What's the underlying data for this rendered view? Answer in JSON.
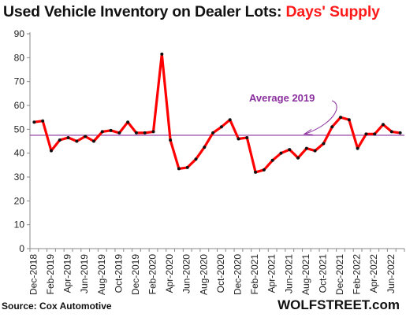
{
  "chart_data": {
    "type": "line",
    "title": "Used Vehicle Inventory on Dealer Lots: ",
    "title_highlight": "Days' Supply",
    "title_highlight_color": "#ff1a1a",
    "source": "Source: Cox Automotive",
    "brand": "WOLFSTREET.com",
    "ylim": [
      0,
      90
    ],
    "yticks": [
      0,
      10,
      20,
      30,
      40,
      50,
      60,
      70,
      80,
      90
    ],
    "grid": false,
    "x": [
      "Dec-2018",
      "Jan-2019",
      "Feb-2019",
      "Mar-2019",
      "Apr-2019",
      "May-2019",
      "Jun-2019",
      "Jul-2019",
      "Aug-2019",
      "Sep-2019",
      "Oct-2019",
      "Nov-2019",
      "Dec-2019",
      "Jan-2020",
      "Feb-2020",
      "Mar-2020",
      "Apr-2020",
      "May-2020",
      "Jun-2020",
      "Jul-2020",
      "Aug-2020",
      "Sep-2020",
      "Oct-2020",
      "Nov-2020",
      "Dec-2020",
      "Jan-2021",
      "Feb-2021",
      "Mar-2021",
      "Apr-2021",
      "May-2021",
      "Jun-2021",
      "Jul-2021",
      "Aug-2021",
      "Sep-2021",
      "Oct-2021",
      "Nov-2021",
      "Dec-2021",
      "Jan-2022",
      "Feb-2022",
      "Mar-2022",
      "Apr-2022",
      "May-2022",
      "Jun-2022",
      "Jul-2022"
    ],
    "xtick_labels": [
      "Dec-2018",
      "Feb-2019",
      "Apr-2019",
      "Jun-2019",
      "Aug-2019",
      "Oct-2019",
      "Dec-2019",
      "Feb-2020",
      "Apr-2020",
      "Jun-2020",
      "Aug-2020",
      "Oct-2020",
      "Dec-2020",
      "Feb-2021",
      "Apr-2021",
      "Jun-2021",
      "Aug-2021",
      "Oct-2021",
      "Dec-2021",
      "Feb-2022",
      "Apr-2022",
      "Jun-2022"
    ],
    "series": [
      {
        "color": "#ff0000",
        "values": [
          53,
          53.5,
          41,
          45.5,
          46.5,
          45,
          47,
          45,
          49,
          49.5,
          48.5,
          53,
          48.5,
          48.5,
          49,
          81.5,
          45.5,
          33.5,
          34,
          37.5,
          42.5,
          48.5,
          51,
          54,
          46,
          46.5,
          32,
          33,
          37,
          40,
          41.5,
          38,
          42,
          41,
          44,
          51,
          55,
          54,
          42,
          48,
          48,
          52,
          49,
          48.5
        ]
      }
    ],
    "reference_line": {
      "label": "Average 2019",
      "value": 47.5,
      "color": "#8b2f9e"
    }
  }
}
